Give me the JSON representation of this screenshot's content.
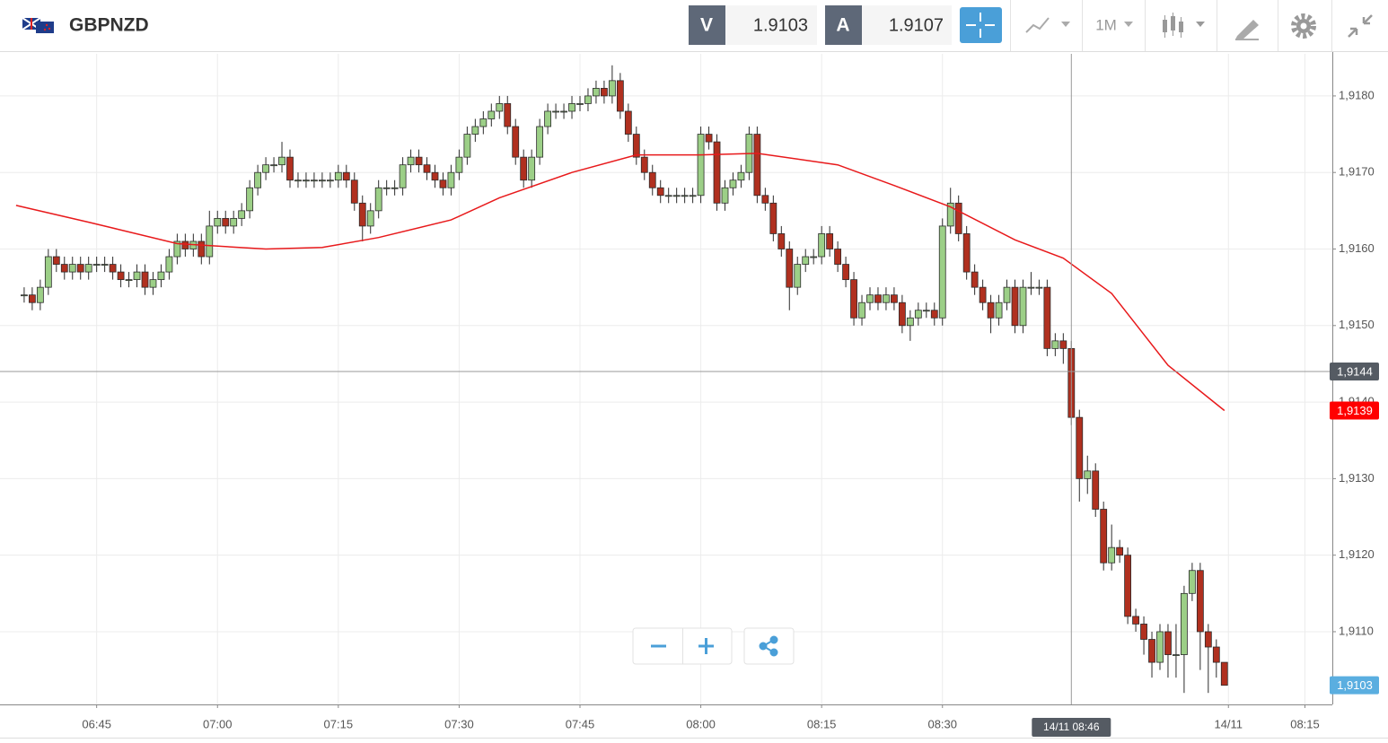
{
  "header": {
    "symbol": "GBPNZD",
    "sell_label": "V",
    "sell_price": "1.9103",
    "buy_label": "A",
    "buy_price": "1.9107",
    "timeframe": "1M"
  },
  "chart_data": {
    "type": "candlestick",
    "up_color": "#9ccf87",
    "down_color": "#b0301f",
    "outline_color": "#2b2b2b",
    "x": [
      396,
      397,
      398,
      399,
      400,
      401,
      402,
      403,
      404,
      405,
      406,
      407,
      408,
      409,
      410,
      411,
      412,
      413,
      414,
      415,
      416,
      417,
      418,
      419,
      420,
      421,
      422,
      423,
      424,
      425,
      426,
      427,
      428,
      429,
      430,
      431,
      432,
      433,
      434,
      435,
      436,
      437,
      438,
      439,
      440,
      441,
      442,
      443,
      444,
      445,
      446,
      447,
      448,
      449,
      450,
      451,
      452,
      453,
      454,
      455,
      456,
      457,
      458,
      459,
      460,
      461,
      462,
      463,
      464,
      465,
      466,
      467,
      468,
      469,
      470,
      471,
      472,
      473,
      474,
      475,
      476,
      477,
      478,
      479,
      480,
      481,
      482,
      483,
      484,
      485,
      486,
      487,
      488,
      489,
      490,
      491,
      492,
      493,
      494,
      495,
      496,
      497,
      498,
      499,
      500,
      501,
      502,
      503,
      504,
      505,
      506,
      507,
      508,
      509,
      510,
      511,
      512,
      513,
      514,
      515,
      516,
      517,
      518,
      519,
      520,
      521,
      522,
      523,
      524,
      525,
      526,
      527,
      528,
      529,
      530,
      531,
      532,
      533,
      534,
      535,
      536,
      537,
      538,
      539,
      540,
      541,
      542,
      543,
      544,
      545
    ],
    "ohlc": [
      [
        1.9154,
        1.9155,
        1.9153,
        1.9154
      ],
      [
        1.9154,
        1.9155,
        1.9152,
        1.9153
      ],
      [
        1.9153,
        1.9156,
        1.9152,
        1.9155
      ],
      [
        1.9155,
        1.916,
        1.9154,
        1.9159
      ],
      [
        1.9159,
        1.916,
        1.9157,
        1.9158
      ],
      [
        1.9158,
        1.9159,
        1.9156,
        1.9157
      ],
      [
        1.9157,
        1.9159,
        1.9156,
        1.9158
      ],
      [
        1.9158,
        1.9159,
        1.9156,
        1.9157
      ],
      [
        1.9157,
        1.9159,
        1.9156,
        1.9158
      ],
      [
        1.9158,
        1.9159,
        1.9157,
        1.9158
      ],
      [
        1.9158,
        1.9159,
        1.9157,
        1.9158
      ],
      [
        1.9158,
        1.9159,
        1.9156,
        1.9157
      ],
      [
        1.9157,
        1.9158,
        1.9155,
        1.9156
      ],
      [
        1.9156,
        1.9157,
        1.9155,
        1.9156
      ],
      [
        1.9156,
        1.9158,
        1.9155,
        1.9157
      ],
      [
        1.9157,
        1.9158,
        1.9154,
        1.9155
      ],
      [
        1.9155,
        1.9157,
        1.9154,
        1.9156
      ],
      [
        1.9156,
        1.9158,
        1.9155,
        1.9157
      ],
      [
        1.9157,
        1.916,
        1.9156,
        1.9159
      ],
      [
        1.9159,
        1.9162,
        1.9158,
        1.9161
      ],
      [
        1.9161,
        1.9162,
        1.9159,
        1.916
      ],
      [
        1.916,
        1.9162,
        1.9159,
        1.9161
      ],
      [
        1.9161,
        1.9162,
        1.9158,
        1.9159
      ],
      [
        1.9159,
        1.9165,
        1.9158,
        1.9163
      ],
      [
        1.9163,
        1.9165,
        1.9162,
        1.9164
      ],
      [
        1.9164,
        1.9165,
        1.9162,
        1.9163
      ],
      [
        1.9163,
        1.9165,
        1.9162,
        1.9164
      ],
      [
        1.9164,
        1.9166,
        1.9163,
        1.9165
      ],
      [
        1.9165,
        1.9169,
        1.9164,
        1.9168
      ],
      [
        1.9168,
        1.9171,
        1.9167,
        1.917
      ],
      [
        1.917,
        1.9172,
        1.9169,
        1.9171
      ],
      [
        1.9171,
        1.9172,
        1.917,
        1.9171
      ],
      [
        1.9171,
        1.9174,
        1.917,
        1.9172
      ],
      [
        1.9172,
        1.9173,
        1.9168,
        1.9169
      ],
      [
        1.9169,
        1.917,
        1.9168,
        1.9169
      ],
      [
        1.9169,
        1.917,
        1.9168,
        1.9169
      ],
      [
        1.9169,
        1.917,
        1.9168,
        1.9169
      ],
      [
        1.9169,
        1.917,
        1.9168,
        1.9169
      ],
      [
        1.9169,
        1.917,
        1.9168,
        1.9169
      ],
      [
        1.9169,
        1.9171,
        1.9168,
        1.917
      ],
      [
        1.917,
        1.9171,
        1.9168,
        1.9169
      ],
      [
        1.9169,
        1.917,
        1.9165,
        1.9166
      ],
      [
        1.9166,
        1.9167,
        1.9161,
        1.9163
      ],
      [
        1.9163,
        1.9166,
        1.9162,
        1.9165
      ],
      [
        1.9165,
        1.9169,
        1.9164,
        1.9168
      ],
      [
        1.9168,
        1.9169,
        1.9167,
        1.9168
      ],
      [
        1.9168,
        1.9169,
        1.9167,
        1.9168
      ],
      [
        1.9168,
        1.9172,
        1.9167,
        1.9171
      ],
      [
        1.9171,
        1.9173,
        1.917,
        1.9172
      ],
      [
        1.9172,
        1.9173,
        1.917,
        1.9171
      ],
      [
        1.9171,
        1.9172,
        1.9169,
        1.917
      ],
      [
        1.917,
        1.9171,
        1.9168,
        1.9169
      ],
      [
        1.9169,
        1.917,
        1.9167,
        1.9168
      ],
      [
        1.9168,
        1.9171,
        1.9167,
        1.917
      ],
      [
        1.917,
        1.9173,
        1.9169,
        1.9172
      ],
      [
        1.9172,
        1.9176,
        1.9171,
        1.9175
      ],
      [
        1.9175,
        1.9177,
        1.9174,
        1.9176
      ],
      [
        1.9176,
        1.9178,
        1.9175,
        1.9177
      ],
      [
        1.9177,
        1.9179,
        1.9176,
        1.9178
      ],
      [
        1.9178,
        1.918,
        1.9177,
        1.9179
      ],
      [
        1.9179,
        1.918,
        1.9175,
        1.9176
      ],
      [
        1.9176,
        1.9177,
        1.9171,
        1.9172
      ],
      [
        1.9172,
        1.9173,
        1.9168,
        1.9169
      ],
      [
        1.9169,
        1.9173,
        1.9168,
        1.9172
      ],
      [
        1.9172,
        1.9177,
        1.9171,
        1.9176
      ],
      [
        1.9176,
        1.9179,
        1.9175,
        1.9178
      ],
      [
        1.9178,
        1.9179,
        1.9177,
        1.9178
      ],
      [
        1.9178,
        1.9179,
        1.9177,
        1.9178
      ],
      [
        1.9178,
        1.918,
        1.9177,
        1.9179
      ],
      [
        1.9179,
        1.918,
        1.9178,
        1.9179
      ],
      [
        1.9179,
        1.9181,
        1.9178,
        1.918
      ],
      [
        1.918,
        1.9182,
        1.9179,
        1.9181
      ],
      [
        1.9181,
        1.9182,
        1.9179,
        1.918
      ],
      [
        1.918,
        1.9184,
        1.9179,
        1.9182
      ],
      [
        1.9182,
        1.9183,
        1.9177,
        1.9178
      ],
      [
        1.9178,
        1.9179,
        1.9174,
        1.9175
      ],
      [
        1.9175,
        1.9176,
        1.9171,
        1.9172
      ],
      [
        1.9172,
        1.9173,
        1.9169,
        1.917
      ],
      [
        1.917,
        1.9171,
        1.9167,
        1.9168
      ],
      [
        1.9168,
        1.9169,
        1.9166,
        1.9167
      ],
      [
        1.9167,
        1.9168,
        1.9166,
        1.9167
      ],
      [
        1.9167,
        1.9168,
        1.9166,
        1.9167
      ],
      [
        1.9167,
        1.9168,
        1.9166,
        1.9167
      ],
      [
        1.9167,
        1.9168,
        1.9166,
        1.9167
      ],
      [
        1.9167,
        1.9176,
        1.9166,
        1.9175
      ],
      [
        1.9175,
        1.9176,
        1.9173,
        1.9174
      ],
      [
        1.9174,
        1.9175,
        1.9165,
        1.9166
      ],
      [
        1.9166,
        1.9169,
        1.9165,
        1.9168
      ],
      [
        1.9168,
        1.917,
        1.9167,
        1.9169
      ],
      [
        1.9169,
        1.9171,
        1.9168,
        1.917
      ],
      [
        1.917,
        1.9176,
        1.9169,
        1.9175
      ],
      [
        1.9175,
        1.9176,
        1.9166,
        1.9167
      ],
      [
        1.9167,
        1.9168,
        1.9165,
        1.9166
      ],
      [
        1.9166,
        1.9167,
        1.9161,
        1.9162
      ],
      [
        1.9162,
        1.9163,
        1.9159,
        1.916
      ],
      [
        1.916,
        1.9161,
        1.9152,
        1.9155
      ],
      [
        1.9155,
        1.9159,
        1.9154,
        1.9158
      ],
      [
        1.9158,
        1.916,
        1.9157,
        1.9159
      ],
      [
        1.9159,
        1.916,
        1.9158,
        1.9159
      ],
      [
        1.9159,
        1.9163,
        1.9158,
        1.9162
      ],
      [
        1.9162,
        1.9163,
        1.9159,
        1.916
      ],
      [
        1.916,
        1.9161,
        1.9157,
        1.9158
      ],
      [
        1.9158,
        1.9159,
        1.9155,
        1.9156
      ],
      [
        1.9156,
        1.9157,
        1.915,
        1.9151
      ],
      [
        1.9151,
        1.9154,
        1.915,
        1.9153
      ],
      [
        1.9153,
        1.9155,
        1.9152,
        1.9154
      ],
      [
        1.9154,
        1.9155,
        1.9152,
        1.9153
      ],
      [
        1.9153,
        1.9155,
        1.9152,
        1.9154
      ],
      [
        1.9154,
        1.9155,
        1.9152,
        1.9153
      ],
      [
        1.9153,
        1.9154,
        1.9149,
        1.915
      ],
      [
        1.915,
        1.9152,
        1.9148,
        1.9151
      ],
      [
        1.9151,
        1.9153,
        1.915,
        1.9152
      ],
      [
        1.9152,
        1.9153,
        1.9151,
        1.9152
      ],
      [
        1.9152,
        1.9153,
        1.915,
        1.9151
      ],
      [
        1.9151,
        1.9164,
        1.915,
        1.9163
      ],
      [
        1.9163,
        1.9168,
        1.9162,
        1.9166
      ],
      [
        1.9166,
        1.9167,
        1.9161,
        1.9162
      ],
      [
        1.9162,
        1.9163,
        1.9156,
        1.9157
      ],
      [
        1.9157,
        1.9158,
        1.9154,
        1.9155
      ],
      [
        1.9155,
        1.9156,
        1.9152,
        1.9153
      ],
      [
        1.9153,
        1.9154,
        1.9149,
        1.9151
      ],
      [
        1.9151,
        1.9154,
        1.915,
        1.9153
      ],
      [
        1.9153,
        1.9156,
        1.9152,
        1.9155
      ],
      [
        1.9155,
        1.9156,
        1.9149,
        1.915
      ],
      [
        1.915,
        1.9156,
        1.9149,
        1.9155
      ],
      [
        1.9155,
        1.9157,
        1.9154,
        1.9155
      ],
      [
        1.9155,
        1.9156,
        1.9154,
        1.9155
      ],
      [
        1.9155,
        1.9156,
        1.9146,
        1.9147
      ],
      [
        1.9147,
        1.9149,
        1.9146,
        1.9148
      ],
      [
        1.9148,
        1.9149,
        1.9145,
        1.9147
      ],
      [
        1.9147,
        1.9148,
        1.9137,
        1.9138
      ],
      [
        1.9138,
        1.9139,
        1.9127,
        1.913
      ],
      [
        1.913,
        1.9133,
        1.9128,
        1.9131
      ],
      [
        1.9131,
        1.9132,
        1.9125,
        1.9126
      ],
      [
        1.9126,
        1.9127,
        1.9118,
        1.9119
      ],
      [
        1.9119,
        1.9124,
        1.9118,
        1.9121
      ],
      [
        1.9121,
        1.9122,
        1.9119,
        1.912
      ],
      [
        1.912,
        1.9121,
        1.9111,
        1.9112
      ],
      [
        1.9112,
        1.9113,
        1.911,
        1.9111
      ],
      [
        1.9111,
        1.9112,
        1.9107,
        1.9109
      ],
      [
        1.9109,
        1.911,
        1.9104,
        1.9106
      ],
      [
        1.9106,
        1.9111,
        1.9105,
        1.911
      ],
      [
        1.911,
        1.9111,
        1.9104,
        1.9107
      ],
      [
        1.9107,
        1.9111,
        1.9104,
        1.9107
      ],
      [
        1.9107,
        1.9116,
        1.9102,
        1.9115
      ],
      [
        1.9115,
        1.9119,
        1.9114,
        1.9118
      ],
      [
        1.9118,
        1.9119,
        1.9105,
        1.911
      ],
      [
        1.911,
        1.9111,
        1.9102,
        1.9108
      ],
      [
        1.9108,
        1.9109,
        1.9104,
        1.9106
      ],
      [
        1.9106,
        1.9106,
        1.9103,
        1.9103
      ]
    ],
    "moving_average": {
      "color": "#e8191b",
      "last_label": "1,9139",
      "x": [
        395,
        404,
        415,
        426,
        433,
        440,
        449,
        455,
        464,
        472,
        480,
        487,
        497,
        504,
        511,
        519,
        525,
        531,
        538,
        545
      ],
      "values": [
        1.91657,
        1.91635,
        1.91607,
        1.916,
        1.91602,
        1.91615,
        1.91638,
        1.91667,
        1.917,
        1.91723,
        1.91723,
        1.91725,
        1.9171,
        1.91683,
        1.91655,
        1.91612,
        1.91588,
        1.91542,
        1.91448,
        1.91389
      ]
    },
    "xlim": [
      393,
      558.4
    ],
    "ylim": [
      1.91005,
      1.91855
    ],
    "yticks": [
      {
        "value": 1.911,
        "label": "1,9110"
      },
      {
        "value": 1.912,
        "label": "1,9120"
      },
      {
        "value": 1.913,
        "label": "1,9130"
      },
      {
        "value": 1.914,
        "label": "1,9140"
      },
      {
        "value": 1.915,
        "label": "1,9150"
      },
      {
        "value": 1.916,
        "label": "1,9160"
      },
      {
        "value": 1.917,
        "label": "1,9170"
      },
      {
        "value": 1.918,
        "label": "1,9180"
      }
    ],
    "xticks": [
      {
        "value": 405,
        "label": "06:45"
      },
      {
        "value": 420,
        "label": "07:00"
      },
      {
        "value": 435,
        "label": "07:15"
      },
      {
        "value": 450,
        "label": "07:30"
      },
      {
        "value": 465,
        "label": "07:45"
      },
      {
        "value": 480,
        "label": "08:00"
      },
      {
        "value": 495,
        "label": "08:15"
      },
      {
        "value": 510,
        "label": "08:30"
      },
      {
        "value": 545.5,
        "label": "14/11"
      },
      {
        "value": 555,
        "label": "08:15"
      }
    ],
    "crosshair": {
      "x": {
        "value": 526,
        "label": "14/11 08:46"
      },
      "y": {
        "value": 1.9144,
        "label": "1,9144"
      }
    },
    "last_price": {
      "value": 1.9103,
      "label": "1,9103"
    },
    "grid": true
  }
}
